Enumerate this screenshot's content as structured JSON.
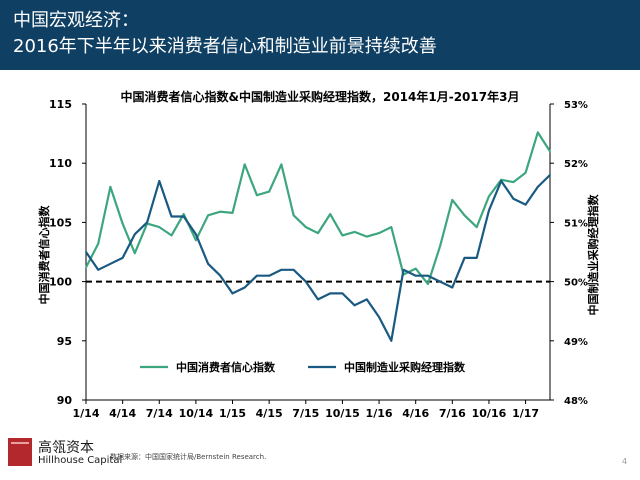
{
  "header": {
    "line1": "中国宏观经济：",
    "line2": "2016年下半年以来消费者信心和制造业前景持续改善"
  },
  "footer": {
    "brand_cn": "高瓴资本",
    "brand_en": "Hillhouse Capital",
    "source": "数据来源：中国国家统计局/Bernstein Research.",
    "page": "4"
  },
  "colors": {
    "header_bg": "#0f3f63",
    "consumer": "#3da67f",
    "pmi": "#1a5a82",
    "logo": "#b3282d"
  },
  "chart_data": {
    "type": "line",
    "title": "中国消费者信心指数&中国制造业采购经理指数，2014年1月-2017年3月",
    "ylabel_left": "中国消费者信心指数",
    "ylabel_right": "中国制造业采购经理指数",
    "ylim_left": [
      90,
      115
    ],
    "yticks_left": [
      "90",
      "95",
      "100",
      "105",
      "110",
      "115"
    ],
    "ylim_right": [
      48,
      53
    ],
    "yticks_right": [
      "48%",
      "49%",
      "50%",
      "51%",
      "52%",
      "53%"
    ],
    "xtick_labels": [
      "1/14",
      "4/14",
      "7/14",
      "10/14",
      "1/15",
      "4/15",
      "7/15",
      "10/15",
      "1/16",
      "4/16",
      "7/16",
      "10/16",
      "1/17"
    ],
    "reference_line": {
      "axis": "right",
      "value": 50,
      "style": "dashed"
    },
    "legend_position": "bottom",
    "series": [
      {
        "name": "中国消费者信心指数",
        "axis": "left",
        "values": [
          101.2,
          103.2,
          108.0,
          104.9,
          102.4,
          104.9,
          104.6,
          103.9,
          105.7,
          103.5,
          105.6,
          105.9,
          105.8,
          109.9,
          107.3,
          107.6,
          109.9,
          105.6,
          104.6,
          104.1,
          105.7,
          103.9,
          104.2,
          103.8,
          104.1,
          104.6,
          100.6,
          101.1,
          99.8,
          103.0,
          106.9,
          105.6,
          104.6,
          107.2,
          108.6,
          108.4,
          109.2,
          112.6,
          111.0
        ]
      },
      {
        "name": "中国制造业采购经理指数",
        "axis": "right",
        "values": [
          50.5,
          50.2,
          50.3,
          50.4,
          50.8,
          51.0,
          51.7,
          51.1,
          51.1,
          50.8,
          50.3,
          50.1,
          49.8,
          49.9,
          50.1,
          50.1,
          50.2,
          50.2,
          50.0,
          49.7,
          49.8,
          49.8,
          49.6,
          49.7,
          49.4,
          49.0,
          50.2,
          50.1,
          50.1,
          50.0,
          49.9,
          50.4,
          50.4,
          51.2,
          51.7,
          51.4,
          51.3,
          51.6,
          51.8
        ]
      }
    ]
  }
}
